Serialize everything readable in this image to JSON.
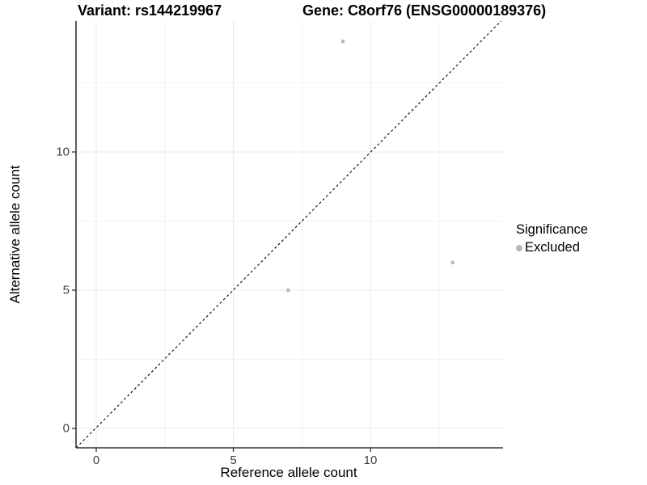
{
  "header": {
    "variant_title": "Variant: rs144219967",
    "gene_title": "Gene: C8orf76 (ENSG00000189376)"
  },
  "chart_data": {
    "type": "scatter",
    "title": "Variant: rs144219967 — Gene: C8orf76 (ENSG00000189376)",
    "xlabel": "Reference allele count",
    "ylabel": "Alternative allele count",
    "xlim": [
      -0.75,
      14.85
    ],
    "ylim": [
      -0.75,
      14.75
    ],
    "x_ticks": [
      0,
      5,
      10
    ],
    "y_ticks": [
      0,
      5,
      10
    ],
    "x_minor_gridlines": [
      2.5,
      7.5,
      12.5
    ],
    "y_minor_gridlines": [
      2.5,
      7.5,
      12.5
    ],
    "grid": "on",
    "identity_line": {
      "equation": "y = x",
      "style": "dashed",
      "color": "#000000"
    },
    "series": [
      {
        "name": "Excluded",
        "color": "#b8b8b8",
        "points": [
          {
            "x": 9,
            "y": 14
          },
          {
            "x": 7,
            "y": 5
          },
          {
            "x": 13,
            "y": 6
          }
        ]
      }
    ],
    "legend": {
      "title": "Significance",
      "position": "right",
      "items": [
        {
          "label": "Excluded",
          "color": "#b8b8b8"
        }
      ]
    }
  }
}
